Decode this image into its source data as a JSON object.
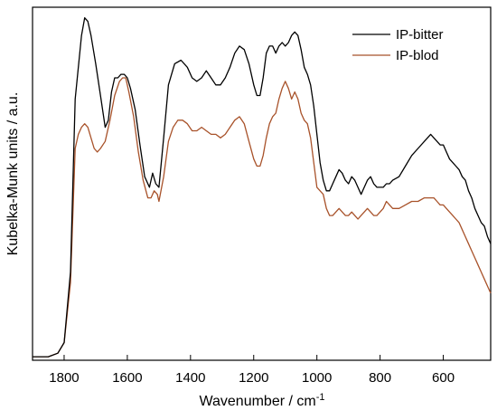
{
  "chart_data": {
    "type": "line",
    "title": "",
    "xlabel": "Wavenumber / cm",
    "xlabel_sup": "-1",
    "ylabel": "Kubelka-Munk units / a.u.",
    "xlim": [
      1900,
      450
    ],
    "x_reversed": true,
    "ylim": [
      0,
      1
    ],
    "y_ticks_labeled": false,
    "x_ticks": [
      1800,
      1600,
      1400,
      1200,
      1000,
      800,
      600
    ],
    "x_tick_labels": [
      "1800",
      "1600",
      "1400",
      "1200",
      "1000",
      "800",
      "600"
    ],
    "grid": false,
    "legend_position": "top-right",
    "series": [
      {
        "name": "IP-bitter",
        "color": "#000000",
        "points": [
          [
            1900,
            0.01
          ],
          [
            1850,
            0.01
          ],
          [
            1820,
            0.02
          ],
          [
            1800,
            0.05
          ],
          [
            1780,
            0.25
          ],
          [
            1765,
            0.74
          ],
          [
            1755,
            0.83
          ],
          [
            1745,
            0.92
          ],
          [
            1735,
            0.97
          ],
          [
            1725,
            0.96
          ],
          [
            1715,
            0.92
          ],
          [
            1700,
            0.84
          ],
          [
            1685,
            0.75
          ],
          [
            1670,
            0.66
          ],
          [
            1660,
            0.68
          ],
          [
            1650,
            0.76
          ],
          [
            1640,
            0.8
          ],
          [
            1630,
            0.8
          ],
          [
            1620,
            0.81
          ],
          [
            1610,
            0.81
          ],
          [
            1600,
            0.8
          ],
          [
            1590,
            0.77
          ],
          [
            1575,
            0.71
          ],
          [
            1560,
            0.61
          ],
          [
            1545,
            0.52
          ],
          [
            1530,
            0.49
          ],
          [
            1520,
            0.53
          ],
          [
            1510,
            0.5
          ],
          [
            1500,
            0.49
          ],
          [
            1485,
            0.63
          ],
          [
            1470,
            0.78
          ],
          [
            1450,
            0.84
          ],
          [
            1430,
            0.85
          ],
          [
            1410,
            0.83
          ],
          [
            1395,
            0.8
          ],
          [
            1380,
            0.79
          ],
          [
            1365,
            0.8
          ],
          [
            1350,
            0.82
          ],
          [
            1335,
            0.8
          ],
          [
            1320,
            0.78
          ],
          [
            1305,
            0.78
          ],
          [
            1290,
            0.8
          ],
          [
            1275,
            0.83
          ],
          [
            1260,
            0.87
          ],
          [
            1245,
            0.89
          ],
          [
            1230,
            0.88
          ],
          [
            1215,
            0.84
          ],
          [
            1200,
            0.78
          ],
          [
            1190,
            0.75
          ],
          [
            1180,
            0.75
          ],
          [
            1170,
            0.8
          ],
          [
            1160,
            0.87
          ],
          [
            1150,
            0.89
          ],
          [
            1140,
            0.89
          ],
          [
            1130,
            0.87
          ],
          [
            1120,
            0.89
          ],
          [
            1110,
            0.9
          ],
          [
            1100,
            0.89
          ],
          [
            1090,
            0.9
          ],
          [
            1080,
            0.92
          ],
          [
            1070,
            0.93
          ],
          [
            1060,
            0.92
          ],
          [
            1050,
            0.88
          ],
          [
            1040,
            0.83
          ],
          [
            1030,
            0.81
          ],
          [
            1020,
            0.78
          ],
          [
            1010,
            0.72
          ],
          [
            1000,
            0.64
          ],
          [
            990,
            0.56
          ],
          [
            980,
            0.51
          ],
          [
            970,
            0.48
          ],
          [
            960,
            0.48
          ],
          [
            950,
            0.5
          ],
          [
            940,
            0.52
          ],
          [
            930,
            0.54
          ],
          [
            920,
            0.53
          ],
          [
            910,
            0.51
          ],
          [
            900,
            0.5
          ],
          [
            890,
            0.52
          ],
          [
            880,
            0.51
          ],
          [
            870,
            0.49
          ],
          [
            860,
            0.47
          ],
          [
            850,
            0.49
          ],
          [
            840,
            0.51
          ],
          [
            830,
            0.52
          ],
          [
            820,
            0.5
          ],
          [
            810,
            0.49
          ],
          [
            800,
            0.49
          ],
          [
            790,
            0.49
          ],
          [
            780,
            0.5
          ],
          [
            770,
            0.5
          ],
          [
            760,
            0.51
          ],
          [
            740,
            0.52
          ],
          [
            720,
            0.55
          ],
          [
            700,
            0.58
          ],
          [
            680,
            0.6
          ],
          [
            660,
            0.62
          ],
          [
            650,
            0.63
          ],
          [
            640,
            0.64
          ],
          [
            630,
            0.63
          ],
          [
            620,
            0.62
          ],
          [
            610,
            0.61
          ],
          [
            600,
            0.61
          ],
          [
            590,
            0.59
          ],
          [
            580,
            0.57
          ],
          [
            570,
            0.56
          ],
          [
            560,
            0.55
          ],
          [
            550,
            0.54
          ],
          [
            540,
            0.52
          ],
          [
            530,
            0.51
          ],
          [
            520,
            0.48
          ],
          [
            510,
            0.46
          ],
          [
            500,
            0.43
          ],
          [
            490,
            0.41
          ],
          [
            480,
            0.39
          ],
          [
            470,
            0.38
          ],
          [
            460,
            0.35
          ],
          [
            450,
            0.33
          ]
        ]
      },
      {
        "name": "IP-blod",
        "color": "#a8522a",
        "points": [
          [
            1900,
            0.01
          ],
          [
            1850,
            0.01
          ],
          [
            1820,
            0.02
          ],
          [
            1800,
            0.05
          ],
          [
            1780,
            0.22
          ],
          [
            1765,
            0.6
          ],
          [
            1755,
            0.64
          ],
          [
            1745,
            0.66
          ],
          [
            1735,
            0.67
          ],
          [
            1725,
            0.66
          ],
          [
            1715,
            0.63
          ],
          [
            1705,
            0.6
          ],
          [
            1695,
            0.59
          ],
          [
            1685,
            0.6
          ],
          [
            1670,
            0.62
          ],
          [
            1655,
            0.68
          ],
          [
            1640,
            0.75
          ],
          [
            1625,
            0.79
          ],
          [
            1615,
            0.8
          ],
          [
            1605,
            0.8
          ],
          [
            1595,
            0.76
          ],
          [
            1580,
            0.69
          ],
          [
            1565,
            0.59
          ],
          [
            1550,
            0.51
          ],
          [
            1535,
            0.46
          ],
          [
            1525,
            0.46
          ],
          [
            1515,
            0.48
          ],
          [
            1505,
            0.47
          ],
          [
            1500,
            0.45
          ],
          [
            1485,
            0.52
          ],
          [
            1470,
            0.62
          ],
          [
            1455,
            0.66
          ],
          [
            1440,
            0.68
          ],
          [
            1425,
            0.68
          ],
          [
            1410,
            0.67
          ],
          [
            1395,
            0.65
          ],
          [
            1380,
            0.65
          ],
          [
            1365,
            0.66
          ],
          [
            1350,
            0.65
          ],
          [
            1335,
            0.64
          ],
          [
            1320,
            0.64
          ],
          [
            1305,
            0.63
          ],
          [
            1290,
            0.64
          ],
          [
            1275,
            0.66
          ],
          [
            1260,
            0.68
          ],
          [
            1245,
            0.69
          ],
          [
            1230,
            0.67
          ],
          [
            1215,
            0.62
          ],
          [
            1200,
            0.57
          ],
          [
            1190,
            0.55
          ],
          [
            1180,
            0.55
          ],
          [
            1170,
            0.58
          ],
          [
            1160,
            0.63
          ],
          [
            1150,
            0.67
          ],
          [
            1140,
            0.69
          ],
          [
            1130,
            0.7
          ],
          [
            1120,
            0.74
          ],
          [
            1110,
            0.77
          ],
          [
            1100,
            0.79
          ],
          [
            1090,
            0.77
          ],
          [
            1080,
            0.74
          ],
          [
            1070,
            0.76
          ],
          [
            1060,
            0.74
          ],
          [
            1050,
            0.7
          ],
          [
            1040,
            0.68
          ],
          [
            1030,
            0.67
          ],
          [
            1020,
            0.63
          ],
          [
            1010,
            0.56
          ],
          [
            1000,
            0.49
          ],
          [
            990,
            0.48
          ],
          [
            980,
            0.47
          ],
          [
            970,
            0.43
          ],
          [
            960,
            0.41
          ],
          [
            950,
            0.41
          ],
          [
            940,
            0.42
          ],
          [
            930,
            0.43
          ],
          [
            920,
            0.42
          ],
          [
            910,
            0.41
          ],
          [
            900,
            0.41
          ],
          [
            890,
            0.42
          ],
          [
            880,
            0.41
          ],
          [
            870,
            0.4
          ],
          [
            860,
            0.41
          ],
          [
            850,
            0.42
          ],
          [
            840,
            0.43
          ],
          [
            830,
            0.42
          ],
          [
            820,
            0.41
          ],
          [
            810,
            0.41
          ],
          [
            800,
            0.42
          ],
          [
            790,
            0.43
          ],
          [
            780,
            0.45
          ],
          [
            770,
            0.44
          ],
          [
            760,
            0.43
          ],
          [
            740,
            0.43
          ],
          [
            720,
            0.44
          ],
          [
            700,
            0.45
          ],
          [
            680,
            0.45
          ],
          [
            660,
            0.46
          ],
          [
            650,
            0.46
          ],
          [
            640,
            0.46
          ],
          [
            630,
            0.46
          ],
          [
            620,
            0.45
          ],
          [
            610,
            0.44
          ],
          [
            600,
            0.44
          ],
          [
            590,
            0.43
          ],
          [
            580,
            0.42
          ],
          [
            570,
            0.41
          ],
          [
            560,
            0.4
          ],
          [
            550,
            0.39
          ],
          [
            540,
            0.37
          ],
          [
            530,
            0.35
          ],
          [
            520,
            0.33
          ],
          [
            510,
            0.31
          ],
          [
            500,
            0.29
          ],
          [
            490,
            0.27
          ],
          [
            480,
            0.25
          ],
          [
            470,
            0.23
          ],
          [
            460,
            0.21
          ],
          [
            450,
            0.19
          ]
        ]
      }
    ]
  }
}
